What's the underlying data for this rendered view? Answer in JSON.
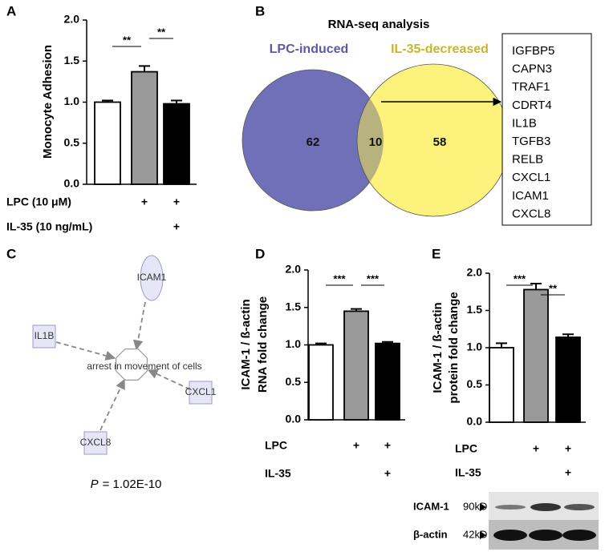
{
  "panels": [
    "A",
    "B",
    "C",
    "D",
    "E"
  ],
  "chart_data": [
    {
      "type": "bar",
      "ylabel": [
        "Monocyte Adhesion"
      ],
      "categories": [
        null,
        null,
        null
      ],
      "values": [
        1.0,
        1.37,
        0.98
      ],
      "errors": [
        0.02,
        0.07,
        0.04
      ],
      "colors": [
        "#ffffff",
        "#999999",
        "#000000"
      ],
      "ylim": [
        0,
        2
      ],
      "yticks": [
        {
          "value": 0,
          "label": "0.0"
        },
        {
          "value": 0.5,
          "label": "0.5"
        },
        {
          "value": 1,
          "label": "1.0"
        },
        {
          "value": 1.5,
          "label": "1.5"
        },
        {
          "value": 2,
          "label": "2.0"
        }
      ],
      "annotations": [
        {
          "text": "**",
          "from": 0,
          "to": 1
        },
        {
          "text": "**",
          "from": 1,
          "to": 2
        }
      ],
      "conditions": [
        {
          "label": "LPC (10 μM)",
          "marks": [
            null,
            "+",
            "+"
          ]
        },
        {
          "label": "IL-35 (10 ng/mL)",
          "marks": [
            null,
            null,
            "+"
          ]
        }
      ]
    },
    {
      "type": "bar",
      "ylabel": [
        "ICAM-1 / ß-actin",
        "RNA fold change"
      ],
      "categories": [
        null,
        null,
        null
      ],
      "values": [
        1.0,
        1.45,
        1.02
      ],
      "errors": [
        0.02,
        0.03,
        0.02
      ],
      "colors": [
        "#ffffff",
        "#999999",
        "#000000"
      ],
      "ylim": [
        0,
        2
      ],
      "yticks": [
        {
          "value": 0,
          "label": "0.0"
        },
        {
          "value": 0.5,
          "label": "0.5"
        },
        {
          "value": 1,
          "label": "1.0"
        },
        {
          "value": 1.5,
          "label": "1.5"
        },
        {
          "value": 2,
          "label": "2.0"
        }
      ],
      "annotations": [
        {
          "text": "***",
          "from": 0,
          "to": 1
        },
        {
          "text": "***",
          "from": 1,
          "to": 2
        }
      ],
      "conditions": [
        {
          "label": "LPC",
          "marks": [
            null,
            "+",
            "+"
          ]
        },
        {
          "label": "IL-35",
          "marks": [
            null,
            null,
            "+"
          ]
        }
      ]
    },
    {
      "type": "bar",
      "ylabel": [
        "ICAM-1 / ß-actin",
        "protein fold change"
      ],
      "categories": [
        null,
        null,
        null
      ],
      "values": [
        1.0,
        1.78,
        1.14
      ],
      "errors": [
        0.06,
        0.08,
        0.04
      ],
      "colors": [
        "#ffffff",
        "#999999",
        "#000000"
      ],
      "ylim": [
        0,
        2
      ],
      "yticks": [
        {
          "value": 0,
          "label": "0.0"
        },
        {
          "value": 0.5,
          "label": "0.5"
        },
        {
          "value": 1,
          "label": "1.0"
        },
        {
          "value": 1.5,
          "label": "1.5"
        },
        {
          "value": 2,
          "label": "2.0"
        }
      ],
      "annotations": [
        {
          "text": "***",
          "from": 0,
          "to": 1
        },
        {
          "text": "**",
          "from": 1,
          "to": 2
        }
      ],
      "conditions": [
        {
          "label": "LPC",
          "marks": [
            null,
            "+",
            "+"
          ]
        },
        {
          "label": "IL-35",
          "marks": [
            null,
            null,
            "+"
          ]
        }
      ]
    }
  ],
  "venn": {
    "title": "RNA-seq analysis",
    "sets": [
      {
        "name": "LPC-induced",
        "only": 62,
        "color": "#7070b8"
      },
      {
        "name": "IL-35-decreased",
        "only": 58,
        "color": "#fdf27c"
      }
    ],
    "overlap": 10,
    "overlap_color": "#b8b27e",
    "overlap_genes": [
      "IGFBP5",
      "CAPN3",
      "TRAF1",
      "CDRT4",
      "IL1B",
      "TGFB3",
      "RELB",
      "CXCL1",
      "ICAM1",
      "CXCL8"
    ]
  },
  "network": {
    "nodes": [
      "ICAM1",
      "IL1B",
      "CXCL1",
      "CXCL8"
    ],
    "center": "arrest in movement of cells",
    "p_value": {
      "symbol": "P",
      "text": "= 1.02E-10"
    }
  },
  "blot": {
    "rows": [
      {
        "name": "ICAM-1",
        "size": "90kD"
      },
      {
        "name": "β-actin",
        "size": "42kD"
      }
    ]
  }
}
